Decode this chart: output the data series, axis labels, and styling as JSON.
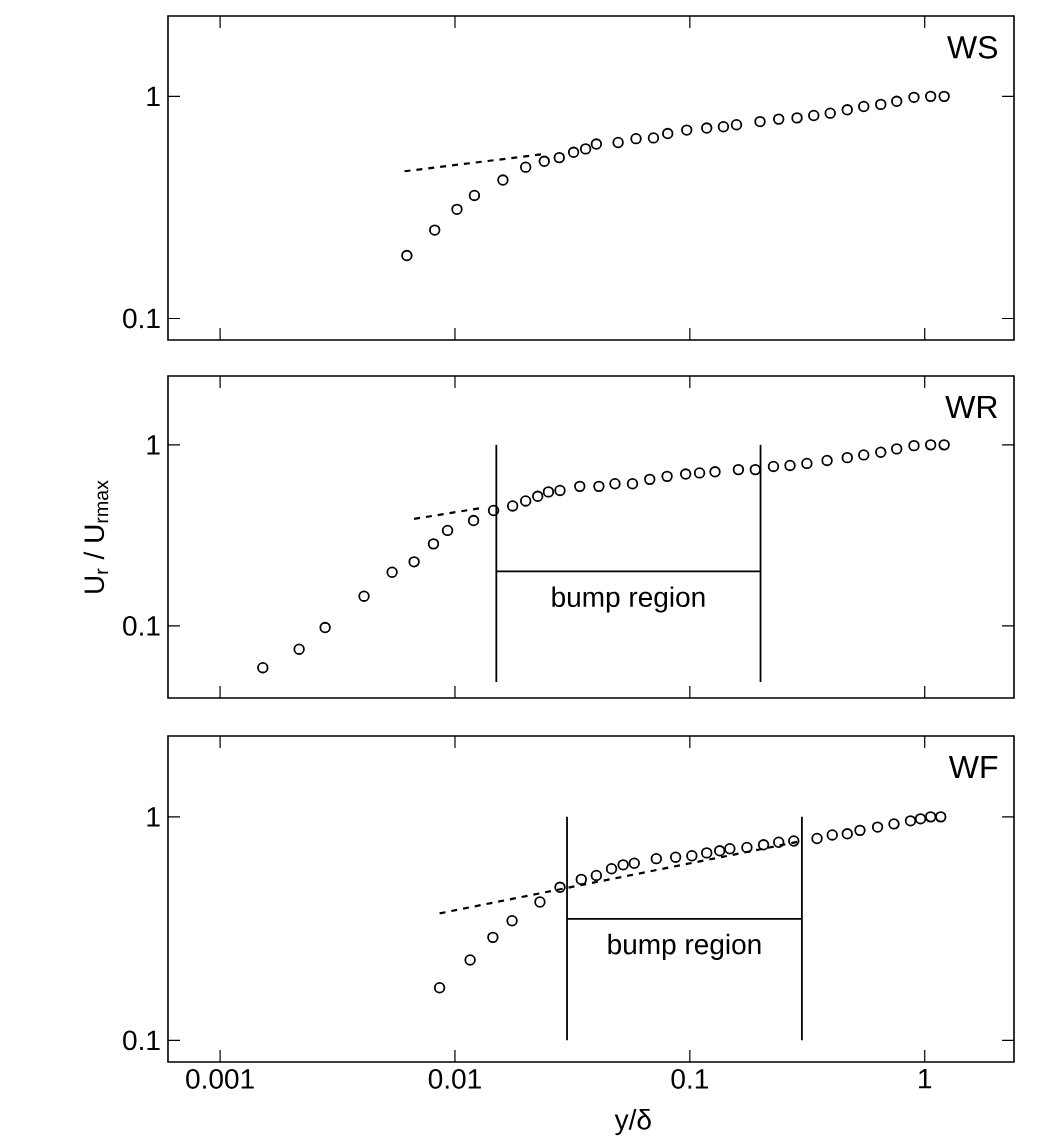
{
  "chart_data": [
    {
      "type": "scatter",
      "title": "WS",
      "log": "xy",
      "tick_labels": "y",
      "xlim": [
        0.0006,
        2.4
      ],
      "ylim": [
        0.08,
        2.3
      ],
      "xticks": [
        0.001,
        0.01,
        0.1,
        1
      ],
      "yticks": [
        0.1,
        1
      ],
      "series": [
        {
          "type": "scatter",
          "color": "#000000",
          "marker": "circle",
          "x": [
            0.00624,
            0.0082,
            0.0102,
            0.0121,
            0.016,
            0.02,
            0.024,
            0.0278,
            0.032,
            0.036,
            0.04,
            0.0495,
            0.059,
            0.07,
            0.0805,
            0.097,
            0.118,
            0.139,
            0.158,
            0.199,
            0.239,
            0.286,
            0.337,
            0.396,
            0.468,
            0.55,
            0.65,
            0.76,
            0.9,
            1.06,
            1.21
          ],
          "values": [
            0.192,
            0.25,
            0.31,
            0.358,
            0.42,
            0.48,
            0.51,
            0.53,
            0.56,
            0.58,
            0.61,
            0.62,
            0.645,
            0.65,
            0.68,
            0.705,
            0.72,
            0.73,
            0.745,
            0.77,
            0.79,
            0.8,
            0.82,
            0.84,
            0.87,
            0.9,
            0.92,
            0.95,
            0.99,
            1.0,
            1.0
          ]
        },
        {
          "type": "line",
          "color": "#000000",
          "marker": "none",
          "line_style": "dashed",
          "x": [
            0.0061,
            0.024
          ],
          "values": [
            0.46,
            0.55
          ]
        }
      ]
    },
    {
      "type": "scatter",
      "title": "WR",
      "ylabel": "U$_{r}$ / U$_{rmax}$",
      "log": "xy",
      "tick_labels": "y",
      "xlim": [
        0.0006,
        2.4
      ],
      "ylim": [
        0.04,
        2.4
      ],
      "xticks": [
        0.001,
        0.01,
        0.1,
        1
      ],
      "yticks": [
        0.1,
        1
      ],
      "annotations": [
        "bump region"
      ],
      "series": [
        {
          "type": "scatter",
          "color": "#000000",
          "marker": "circle",
          "x": [
            0.00152,
            0.00217,
            0.0028,
            0.0041,
            0.0054,
            0.0067,
            0.0081,
            0.0093,
            0.012,
            0.0146,
            0.0176,
            0.02,
            0.0225,
            0.025,
            0.028,
            0.034,
            0.041,
            0.048,
            0.057,
            0.0675,
            0.08,
            0.096,
            0.11,
            0.128,
            0.161,
            0.19,
            0.227,
            0.267,
            0.315,
            0.384,
            0.468,
            0.55,
            0.65,
            0.76,
            0.9,
            1.06,
            1.21
          ],
          "values": [
            0.0588,
            0.0744,
            0.098,
            0.146,
            0.198,
            0.226,
            0.284,
            0.337,
            0.382,
            0.434,
            0.46,
            0.49,
            0.52,
            0.55,
            0.56,
            0.59,
            0.59,
            0.61,
            0.61,
            0.645,
            0.67,
            0.69,
            0.7,
            0.71,
            0.73,
            0.73,
            0.76,
            0.77,
            0.79,
            0.82,
            0.85,
            0.88,
            0.91,
            0.95,
            0.99,
            1.0,
            1.0
          ]
        },
        {
          "type": "line",
          "color": "#000000",
          "marker": "none",
          "line_style": "dashed",
          "x": [
            0.0067,
            0.0132
          ],
          "values": [
            0.39,
            0.45
          ]
        },
        {
          "type": "line",
          "color": "#000000",
          "marker": "none",
          "line_style": "solid",
          "x": [
            0.015,
            0.015
          ],
          "values": [
            1,
            0.049
          ]
        },
        {
          "type": "line",
          "color": "#000000",
          "marker": "none",
          "line_style": "solid",
          "x": [
            0.2,
            0.2
          ],
          "values": [
            1,
            0.049
          ]
        },
        {
          "type": "line",
          "color": "#000000",
          "marker": "none",
          "line_style": "solid",
          "x": [
            0.015,
            0.2
          ],
          "values": [
            0.2,
            0.2
          ]
        }
      ]
    },
    {
      "type": "scatter",
      "title": "WF",
      "xlabel": "y/δ",
      "log": "xy",
      "xlim": [
        0.0006,
        2.4
      ],
      "ylim": [
        0.08,
        2.3
      ],
      "xticks": [
        0.001,
        0.01,
        0.1,
        1
      ],
      "yticks": [
        0.1,
        1
      ],
      "annotations": [
        "bump region"
      ],
      "series": [
        {
          "type": "scatter",
          "color": "#000000",
          "marker": "circle",
          "x": [
            0.0086,
            0.0116,
            0.0145,
            0.0175,
            0.023,
            0.028,
            0.0345,
            0.04,
            0.0464,
            0.052,
            0.058,
            0.072,
            0.087,
            0.102,
            0.118,
            0.134,
            0.148,
            0.175,
            0.206,
            0.239,
            0.277,
            0.348,
            0.404,
            0.468,
            0.53,
            0.63,
            0.74,
            0.87,
            0.96,
            1.06,
            1.17
          ],
          "values": [
            0.172,
            0.229,
            0.289,
            0.343,
            0.416,
            0.484,
            0.525,
            0.547,
            0.586,
            0.61,
            0.62,
            0.65,
            0.66,
            0.67,
            0.69,
            0.705,
            0.72,
            0.73,
            0.75,
            0.77,
            0.78,
            0.8,
            0.83,
            0.84,
            0.87,
            0.9,
            0.93,
            0.96,
            0.98,
            1.0,
            1.0
          ]
        },
        {
          "type": "line",
          "color": "#000000",
          "marker": "none",
          "line_style": "dashed",
          "x": [
            0.0086,
            0.3
          ],
          "values": [
            0.37,
            0.78
          ]
        },
        {
          "type": "line",
          "color": "#000000",
          "marker": "none",
          "line_style": "solid",
          "x": [
            0.03,
            0.03
          ],
          "values": [
            1,
            0.1
          ]
        },
        {
          "type": "line",
          "color": "#000000",
          "marker": "none",
          "line_style": "solid",
          "x": [
            0.3,
            0.3
          ],
          "values": [
            1,
            0.1
          ]
        },
        {
          "type": "line",
          "color": "#000000",
          "marker": "none",
          "line_style": "solid",
          "x": [
            0.03,
            0.3
          ],
          "values": [
            0.35,
            0.35
          ]
        }
      ]
    }
  ]
}
